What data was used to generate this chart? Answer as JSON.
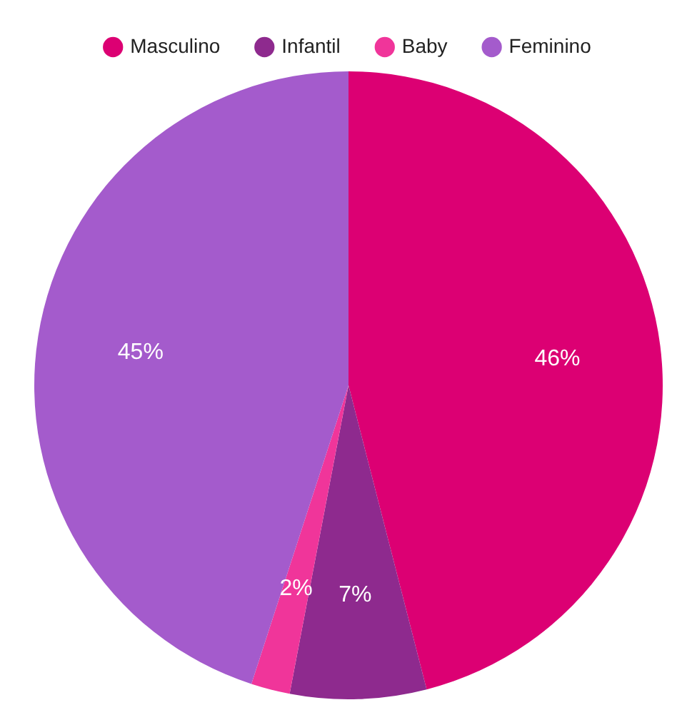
{
  "chart_data": {
    "type": "pie",
    "categories": [
      "Masculino",
      "Infantil",
      "Baby",
      "Feminino"
    ],
    "values": [
      46,
      7,
      2,
      45
    ],
    "colors": [
      "#dc0073",
      "#8e2a8e",
      "#f0359a",
      "#a45bcc"
    ],
    "value_labels": [
      "46%",
      "7%",
      "2%",
      "45%"
    ],
    "legend": "top"
  }
}
